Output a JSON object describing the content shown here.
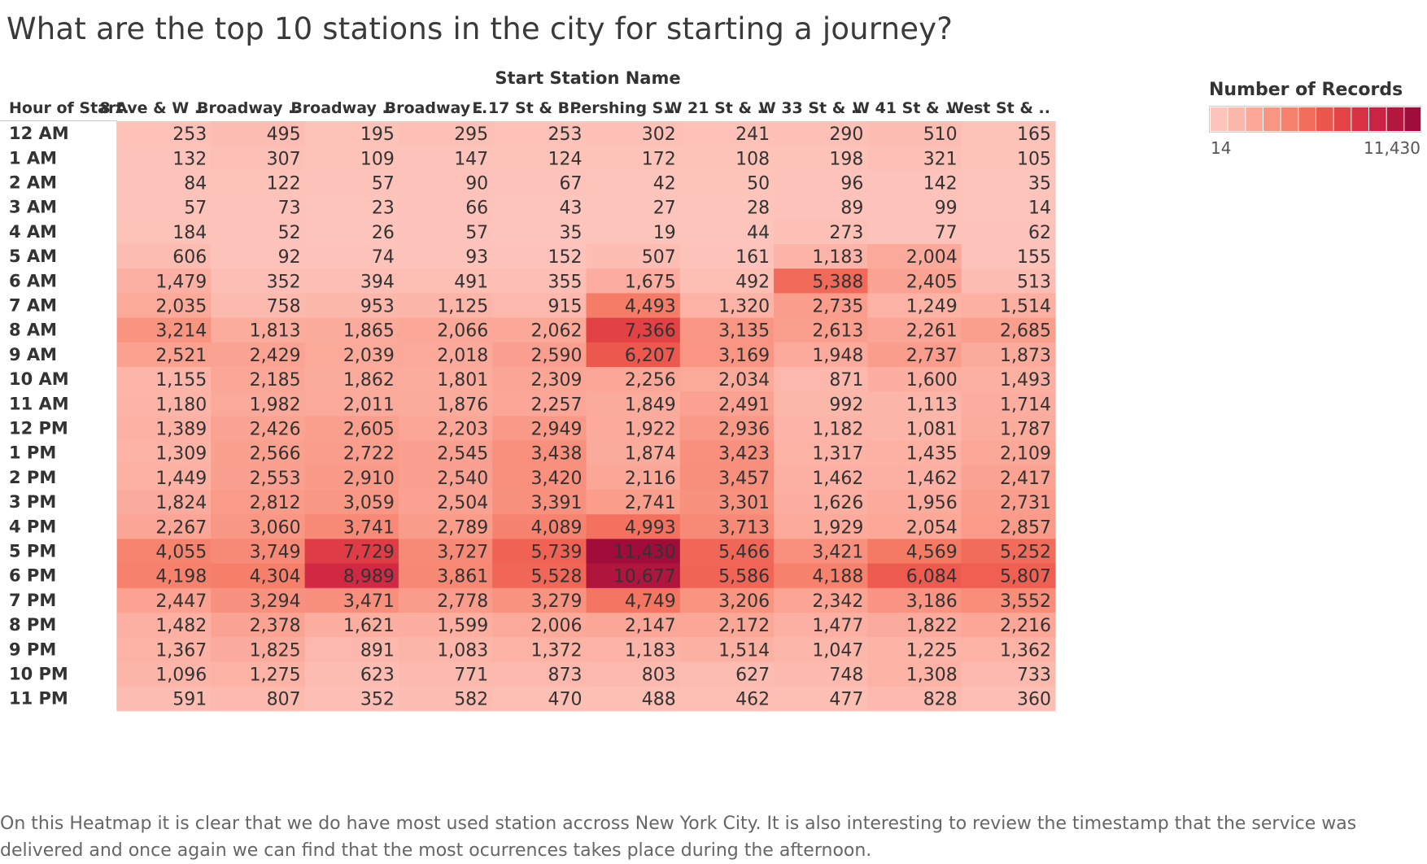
{
  "title": "What are the top 10 stations in the city for starting a journey?",
  "caption": "On this Heatmap it is clear that we do have most used station accross New York City. It is also interesting to review the timestamp that the service was delivered and once again we can find that the most ocurrences takes place during the afternoon.",
  "legend": {
    "title": "Number of Records",
    "min_label": "14",
    "max_label": "11,430",
    "color_low": "#fdc4bb",
    "color_high": "#b51447",
    "steps": 12
  },
  "chart_data": {
    "type": "heatmap",
    "column_header": "Start Station Name",
    "row_header": "Hour of Start..",
    "columns": [
      "8 Ave & W ..",
      "Broadway ..",
      "Broadway ..",
      "Broadway ..",
      "E 17 St & B..",
      "Pershing S..",
      "W 21 St & ..",
      "W 33 St & ..",
      "W 41 St & ..",
      "West St & .."
    ],
    "rows": [
      "12 AM",
      "1 AM",
      "2 AM",
      "3 AM",
      "4 AM",
      "5 AM",
      "6 AM",
      "7 AM",
      "8 AM",
      "9 AM",
      "10 AM",
      "11 AM",
      "12 PM",
      "1 PM",
      "2 PM",
      "3 PM",
      "4 PM",
      "5 PM",
      "6 PM",
      "7 PM",
      "8 PM",
      "9 PM",
      "10 PM",
      "11 PM"
    ],
    "values": [
      [
        253,
        495,
        195,
        295,
        253,
        302,
        241,
        290,
        510,
        165
      ],
      [
        132,
        307,
        109,
        147,
        124,
        172,
        108,
        198,
        321,
        105
      ],
      [
        84,
        122,
        57,
        90,
        67,
        42,
        50,
        96,
        142,
        35
      ],
      [
        57,
        73,
        23,
        66,
        43,
        27,
        28,
        89,
        99,
        14
      ],
      [
        184,
        52,
        26,
        57,
        35,
        19,
        44,
        273,
        77,
        62
      ],
      [
        606,
        92,
        74,
        93,
        152,
        507,
        161,
        1183,
        2004,
        155
      ],
      [
        1479,
        352,
        394,
        491,
        355,
        1675,
        492,
        5388,
        2405,
        513
      ],
      [
        2035,
        758,
        953,
        1125,
        915,
        4493,
        1320,
        2735,
        1249,
        1514
      ],
      [
        3214,
        1813,
        1865,
        2066,
        2062,
        7366,
        3135,
        2613,
        2261,
        2685
      ],
      [
        2521,
        2429,
        2039,
        2018,
        2590,
        6207,
        3169,
        1948,
        2737,
        1873
      ],
      [
        1155,
        2185,
        1862,
        1801,
        2309,
        2256,
        2034,
        871,
        1600,
        1493
      ],
      [
        1180,
        1982,
        2011,
        1876,
        2257,
        1849,
        2491,
        992,
        1113,
        1714
      ],
      [
        1389,
        2426,
        2605,
        2203,
        2949,
        1922,
        2936,
        1182,
        1081,
        1787
      ],
      [
        1309,
        2566,
        2722,
        2545,
        3438,
        1874,
        3423,
        1317,
        1435,
        2109
      ],
      [
        1449,
        2553,
        2910,
        2540,
        3420,
        2116,
        3457,
        1462,
        1462,
        2417
      ],
      [
        1824,
        2812,
        3059,
        2504,
        3391,
        2741,
        3301,
        1626,
        1956,
        2731
      ],
      [
        2267,
        3060,
        3741,
        2789,
        4089,
        4993,
        3713,
        1929,
        2054,
        2857
      ],
      [
        4055,
        3749,
        7729,
        3727,
        5739,
        11430,
        5466,
        3421,
        4569,
        5252
      ],
      [
        4198,
        4304,
        8989,
        3861,
        5528,
        10677,
        5586,
        4188,
        6084,
        5807
      ],
      [
        2447,
        3294,
        3471,
        2778,
        3279,
        4749,
        3206,
        2342,
        3186,
        3552
      ],
      [
        1482,
        2378,
        1621,
        1599,
        2006,
        2147,
        2172,
        1477,
        1822,
        2216
      ],
      [
        1367,
        1825,
        891,
        1083,
        1372,
        1183,
        1514,
        1047,
        1225,
        1362
      ],
      [
        1096,
        1275,
        623,
        771,
        873,
        803,
        627,
        748,
        1308,
        733
      ],
      [
        591,
        807,
        352,
        582,
        470,
        488,
        462,
        477,
        828,
        360
      ]
    ],
    "min": 14,
    "max": 11430
  }
}
